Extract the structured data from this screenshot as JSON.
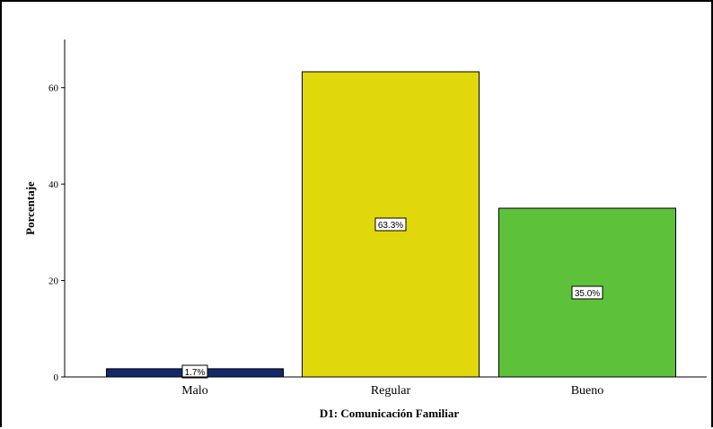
{
  "chart_data": {
    "type": "bar",
    "categories": [
      "Malo",
      "Regular",
      "Bueno"
    ],
    "values": [
      1.7,
      63.3,
      35.0
    ],
    "data_labels": [
      "1.7%",
      "63.3%",
      "35.0%"
    ],
    "colors": [
      "#13286b",
      "#e1d80c",
      "#5dc23a"
    ],
    "xlabel": "D1: Comunicación Familiar",
    "ylabel": "Porcentaje",
    "ylim": [
      0,
      70
    ],
    "yticks": [
      0,
      20,
      40,
      60
    ],
    "grid": false,
    "legend": "none"
  }
}
